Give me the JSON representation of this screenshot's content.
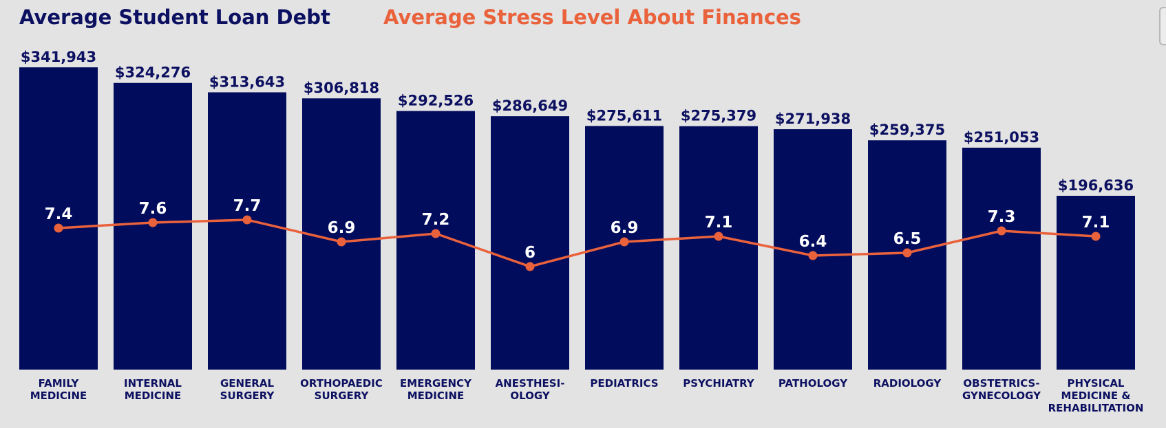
{
  "legend": {
    "debt_label": "Average Student Loan Debt",
    "stress_label": "Average Stress Level About Finances"
  },
  "colors": {
    "background": "#e3e3e3",
    "bar": "#020c5c",
    "line": "#ea623c",
    "text_dark": "#0c1060",
    "text_light": "#ffffff"
  },
  "chart_data": {
    "type": "bar",
    "categories": [
      [
        "FAMILY",
        "MEDICINE"
      ],
      [
        "INTERNAL",
        "MEDICINE"
      ],
      [
        "GENERAL",
        "SURGERY"
      ],
      [
        "ORTHOPAEDIC",
        "SURGERY"
      ],
      [
        "EMERGENCY",
        "MEDICINE"
      ],
      [
        "ANESTHESI-",
        "OLOGY"
      ],
      [
        "PEDIATRICS"
      ],
      [
        "PSYCHIATRY"
      ],
      [
        "PATHOLOGY"
      ],
      [
        "RADIOLOGY"
      ],
      [
        "OBSTETRICS-",
        "GYNECOLOGY"
      ],
      [
        "PHYSICAL",
        "MEDICINE &",
        "REHABILITATION"
      ]
    ],
    "series": [
      {
        "name": "Average Student Loan Debt",
        "type": "bar",
        "values": [
          341943,
          324276,
          313643,
          306818,
          292526,
          286649,
          275611,
          275379,
          271938,
          259375,
          251053,
          196636
        ],
        "labels": [
          "$341,943",
          "$324,276",
          "$313,643",
          "$306,818",
          "$292,526",
          "$286,649",
          "$275,611",
          "$275,379",
          "$271,938",
          "$259,375",
          "$251,053",
          "$196,636"
        ]
      },
      {
        "name": "Average Stress Level About Finances",
        "type": "line",
        "values": [
          7.4,
          7.6,
          7.7,
          6.9,
          7.2,
          6,
          6.9,
          7.1,
          6.4,
          6.5,
          7.3,
          7.1
        ],
        "labels": [
          "7.4",
          "7.6",
          "7.7",
          "6.9",
          "7.2",
          "6",
          "6.9",
          "7.1",
          "6.4",
          "6.5",
          "7.3",
          "7.1"
        ]
      }
    ],
    "grid": false,
    "legend_position": "top-left"
  }
}
